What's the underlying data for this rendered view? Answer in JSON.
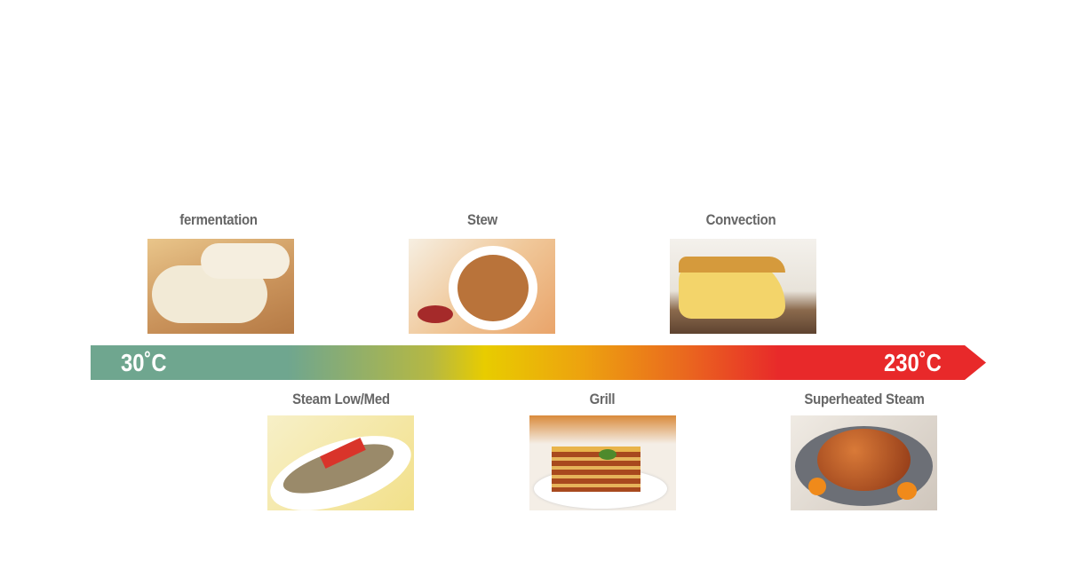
{
  "scale": {
    "min_label": "30˚C",
    "max_label": "230˚C",
    "colors": [
      "#6fa68f",
      "#e8cc00",
      "#ea6a1e",
      "#e8292a"
    ]
  },
  "modes_top": [
    {
      "label": "fermentation",
      "image": "croissant-dough-photo"
    },
    {
      "label": "Stew",
      "image": "soup-bowl-photo"
    },
    {
      "label": "Convection",
      "image": "chiffon-cake-photo"
    }
  ],
  "modes_bottom": [
    {
      "label": "Steam Low/Med",
      "image": "steamed-fish-photo"
    },
    {
      "label": "Grill",
      "image": "lasagna-photo"
    },
    {
      "label": "Superheated Steam",
      "image": "roast-chicken-photo"
    }
  ]
}
